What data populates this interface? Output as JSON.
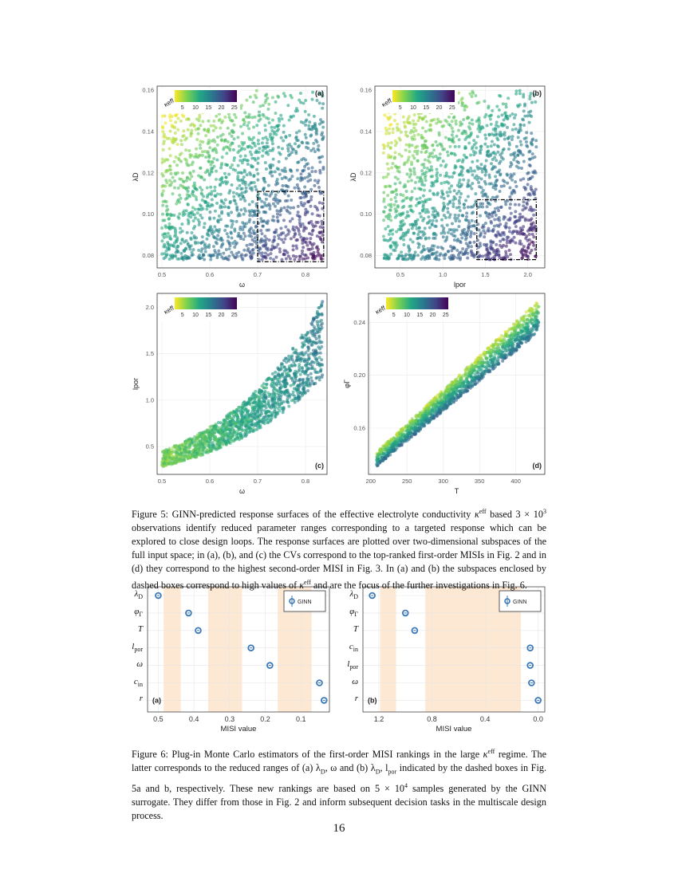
{
  "figure5": {
    "caption": "Figure 5: GINN-predicted response surfaces of the effective electrolyte conductivity κ^eff based 3 × 10^3 observations identify reduced parameter ranges corresponding to a targeted response which can be explored to close design loops. The response surfaces are plotted over two-dimensional subspaces of the full input space; in (a), (b), and (c) the CVs correspond to the top-ranked first-order MISIs in Fig. 2 and in (d) they correspond to the highest second-order MISI in Fig. 3. In (a) and (b) the subspaces enclosed by dashed boxes correspond to high values of κ^eff and are the focus of the further investigations in Fig. 6.",
    "caption_parts": {
      "p1": "Figure 5: GINN-predicted response surfaces of the effective electrolyte conductivity ",
      "kappa": "κ",
      "eff": "eff",
      "p2": " based 3 × 10",
      "exp": "3",
      "p3": " observations identify reduced parameter ranges corresponding to a targeted response which can be explored to close design loops. The response surfaces are plotted over two-dimensional subspaces of the full input space; in (a), (b), and (c) the CVs correspond to the top-ranked first-order MISIs in Fig. 2 and in (d) they correspond to the highest second-order MISI in Fig. 3. In (a) and (b) the subspaces enclosed by dashed boxes correspond to high values of ",
      "p4": " and are the focus of the further investigations in Fig. 6."
    }
  },
  "figure6": {
    "caption_parts": {
      "p1": "Figure 6: Plug-in Monte Carlo estimators of the first-order MISI rankings in the large ",
      "p2": " regime. The latter corresponds to the reduced ranges of (a) λ",
      "p3": ", ω and (b) λ",
      "p4": ", l",
      "p5": " indicated by the dashed boxes in Fig. 5a and b, respectively. These new rankings are based on 5 × 10",
      "exp": "4",
      "p6": " samples generated by the GINN surrogate. They differ from those in Fig. 2 and inform subsequent decision tasks in the multiscale design process.",
      "D": "D",
      "por": "por"
    }
  },
  "page_number": "16",
  "chart_data": [
    {
      "type": "scatter",
      "panel": "(a)",
      "xlabel": "ω",
      "ylabel": "λD",
      "xticks": [
        "0.5",
        "0.6",
        "0.7",
        "0.8"
      ],
      "yticks": [
        "0.08",
        "0.10",
        "0.12",
        "0.14",
        "0.16"
      ],
      "xlim": [
        0.49,
        0.845
      ],
      "ylim": [
        0.074,
        0.162
      ],
      "color_label": "κeff",
      "color_ticks": [
        "5",
        "10",
        "15",
        "20",
        "25"
      ],
      "color_range": [
        2,
        26
      ],
      "colormap": "viridis (reversed: yellow low, purple high)",
      "n_observations": 3000,
      "highlight_box": {
        "x": [
          0.7,
          0.838
        ],
        "y": [
          0.077,
          0.111
        ]
      }
    },
    {
      "type": "scatter",
      "panel": "(b)",
      "xlabel": "lpor",
      "ylabel": "λD",
      "xticks": [
        "0.5",
        "1.0",
        "1.5",
        "2.0"
      ],
      "yticks": [
        "0.08",
        "0.10",
        "0.12",
        "0.14",
        "0.16"
      ],
      "xlim": [
        0.2,
        2.2
      ],
      "ylim": [
        0.074,
        0.162
      ],
      "color_label": "κeff",
      "color_ticks": [
        "5",
        "10",
        "15",
        "20",
        "25"
      ],
      "color_range": [
        2,
        26
      ],
      "n_observations": 3000,
      "highlight_box": {
        "x": [
          1.4,
          2.1
        ],
        "y": [
          0.078,
          0.107
        ]
      }
    },
    {
      "type": "scatter",
      "panel": "(c)",
      "xlabel": "ω",
      "ylabel": "lpor",
      "xticks": [
        "0.5",
        "0.6",
        "0.7",
        "0.8"
      ],
      "yticks": [
        "0.5",
        "1.0",
        "1.5",
        "2.0"
      ],
      "xlim": [
        0.49,
        0.845
      ],
      "ylim": [
        0.2,
        2.15
      ],
      "color_label": "κeff",
      "color_ticks": [
        "5",
        "10",
        "15",
        "20",
        "25"
      ],
      "color_range": [
        2,
        26
      ],
      "n_observations": 3000
    },
    {
      "type": "scatter",
      "panel": "(d)",
      "xlabel": "T",
      "ylabel": "φΓ",
      "xticks": [
        "200",
        "250",
        "300",
        "350",
        "400"
      ],
      "yticks": [
        "0.16",
        "0.20",
        "0.24"
      ],
      "xlim": [
        197,
        440
      ],
      "ylim": [
        0.125,
        0.262
      ],
      "color_label": "κeff",
      "color_ticks": [
        "5",
        "10",
        "15",
        "20",
        "25"
      ],
      "color_range": [
        2,
        26
      ],
      "n_observations": 3000
    },
    {
      "type": "scatter",
      "panel": "(a)",
      "subtitle": "Figure 6 (a)",
      "xlabel": "MISI value",
      "categories": [
        "λD",
        "φΓ",
        "T",
        "lpor",
        "ω",
        "cin",
        "r"
      ],
      "values": [
        0.5,
        0.415,
        0.388,
        0.24,
        0.187,
        0.048,
        0.035
      ],
      "xticks": [
        "0.5",
        "0.4",
        "0.3",
        "0.2",
        "0.1"
      ],
      "xlim": [
        0.53,
        0.02
      ],
      "reversed_x": true,
      "legend": "GINN",
      "legend_position": "top-right",
      "shaded_bands": [
        [
          0.485,
          0.437
        ],
        [
          0.36,
          0.265
        ],
        [
          0.165,
          0.07
        ]
      ],
      "color": "#3a78b8",
      "band_color": "#fde8d4"
    },
    {
      "type": "scatter",
      "panel": "(b)",
      "subtitle": "Figure 6 (b)",
      "xlabel": "MISI value",
      "categories": [
        "λD",
        "φΓ",
        "T",
        "cin",
        "lpor",
        "ω",
        "r"
      ],
      "values": [
        1.25,
        1.0,
        0.93,
        0.06,
        0.06,
        0.05,
        0.0
      ],
      "xticks": [
        "1.2",
        "0.8",
        "0.4",
        "0.0"
      ],
      "xlim": [
        1.32,
        -0.05
      ],
      "reversed_x": true,
      "legend": "GINN",
      "legend_position": "top-right",
      "shaded_bands": [
        [
          1.19,
          1.07
        ],
        [
          0.85,
          0.13
        ]
      ],
      "color": "#3a78b8",
      "band_color": "#fde8d4"
    }
  ]
}
